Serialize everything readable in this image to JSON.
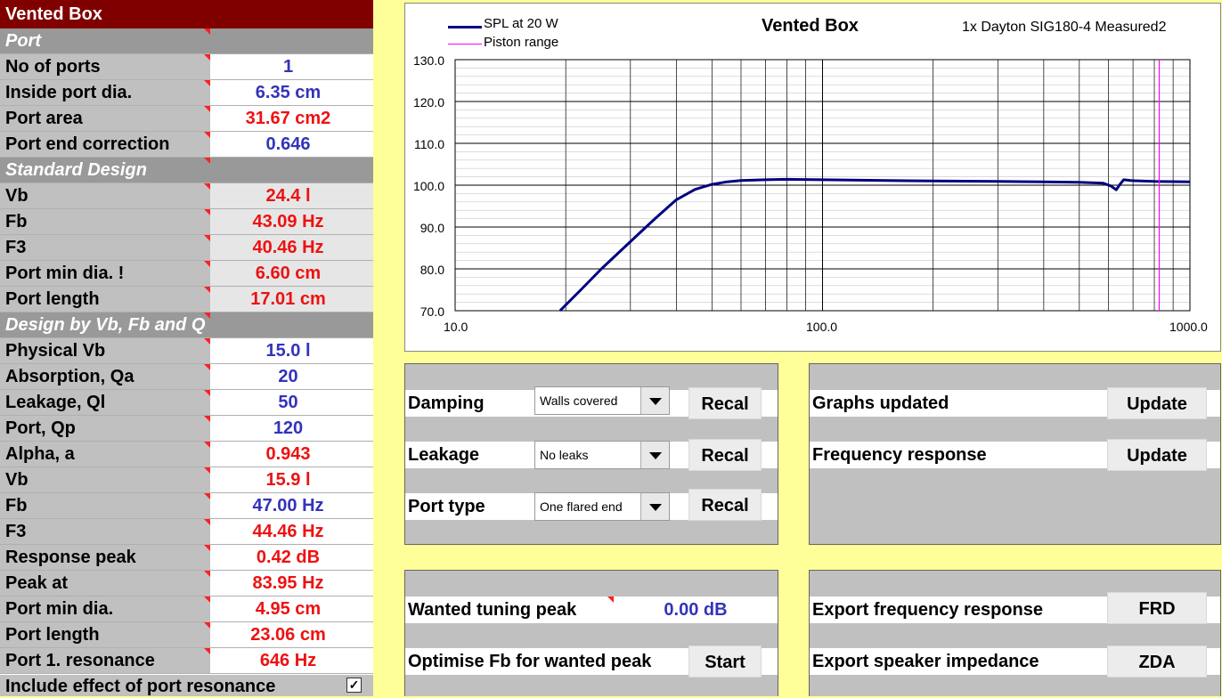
{
  "left": {
    "title": "Vented Box",
    "sections": {
      "port": "Port",
      "standard": "Standard Design",
      "design_vb": "Design by Vb, Fb and Q"
    },
    "rows": [
      {
        "label": "No of ports",
        "value": "1"
      },
      {
        "label": "Inside port dia.",
        "value": "6.35 cm"
      },
      {
        "label": "Port area",
        "value": "31.67 cm2"
      },
      {
        "label": "Port end correction",
        "value": "0.646"
      },
      {
        "label": "Vb",
        "value": "24.4 l"
      },
      {
        "label": "Fb",
        "value": "43.09 Hz"
      },
      {
        "label": "F3",
        "value": "40.46 Hz"
      },
      {
        "label": "Port min dia. !",
        "value": "6.60 cm"
      },
      {
        "label": "Port length",
        "value": "17.01 cm"
      },
      {
        "label": "Physical Vb",
        "value": "15.0 l"
      },
      {
        "label": "Absorption, Qa",
        "value": "20"
      },
      {
        "label": "Leakage, Ql",
        "value": "50"
      },
      {
        "label": "Port, Qp",
        "value": "120"
      },
      {
        "label": "Alpha, a",
        "value": "0.943"
      },
      {
        "label": "Vb",
        "value": "15.9 l"
      },
      {
        "label": "Fb",
        "value": "47.00 Hz"
      },
      {
        "label": "F3",
        "value": "44.46 Hz"
      },
      {
        "label": "Response peak",
        "value": "0.42 dB"
      },
      {
        "label": "Peak at",
        "value": "83.95 Hz"
      },
      {
        "label": "Port min dia.",
        "value": "4.95 cm"
      },
      {
        "label": "Port length",
        "value": "23.06 cm"
      },
      {
        "label": "Port 1. resonance",
        "value": "646 Hz"
      }
    ],
    "checkbox_label": "Include effect of port resonance",
    "checkbox_mark": "✓"
  },
  "chart_data": {
    "type": "line",
    "title": "Vented Box",
    "subtitle": "1x Dayton SIG180-4 Measured2",
    "x_scale": "log",
    "xlim": [
      10,
      1000
    ],
    "ylim": [
      70,
      130
    ],
    "x_ticks": [
      "10.0",
      "100.0",
      "1000.0"
    ],
    "y_ticks": [
      "70.0",
      "80.0",
      "90.0",
      "100.0",
      "110.0",
      "120.0",
      "130.0"
    ],
    "grid": true,
    "legend_position": "top-left",
    "series": [
      {
        "name": "SPL at 20 W",
        "color": "#000080",
        "x": [
          19.3,
          22,
          25,
          30,
          35,
          40,
          45,
          50,
          55,
          60,
          70,
          80,
          100,
          150,
          200,
          300,
          400,
          500,
          580,
          610,
          630,
          645,
          660,
          690,
          800,
          1000
        ],
        "y": [
          70,
          75,
          80,
          86.5,
          92,
          96.5,
          99,
          100.2,
          100.8,
          101.1,
          101.3,
          101.4,
          101.3,
          101.1,
          101.0,
          100.9,
          100.8,
          100.7,
          100.5,
          99.8,
          98.9,
          100.2,
          101.3,
          101.1,
          100.9,
          100.8
        ]
      },
      {
        "name": "Piston range",
        "color": "#FF00FF",
        "x": [
          825,
          825
        ],
        "y": [
          70,
          130
        ]
      }
    ]
  },
  "panel1": {
    "rows": [
      {
        "label": "Damping",
        "select": "Walls covered",
        "button": "Recal"
      },
      {
        "label": "Leakage",
        "select": "No leaks",
        "button": "Recal"
      },
      {
        "label": "Port type",
        "select": "One flared end",
        "button": "Recal"
      }
    ]
  },
  "panel2": {
    "rows": [
      {
        "label": "Graphs updated",
        "button": "Update"
      },
      {
        "label": "Frequency response",
        "button": "Update"
      }
    ]
  },
  "panel3": {
    "wanted_label": "Wanted tuning peak",
    "wanted_value": "0.00 dB",
    "optimise_label": "Optimise Fb for wanted peak",
    "start_button": "Start"
  },
  "panel4": {
    "rows": [
      {
        "label": "Export frequency response",
        "button": "FRD"
      },
      {
        "label": "Export speaker impedance",
        "button": "ZDA"
      }
    ]
  }
}
